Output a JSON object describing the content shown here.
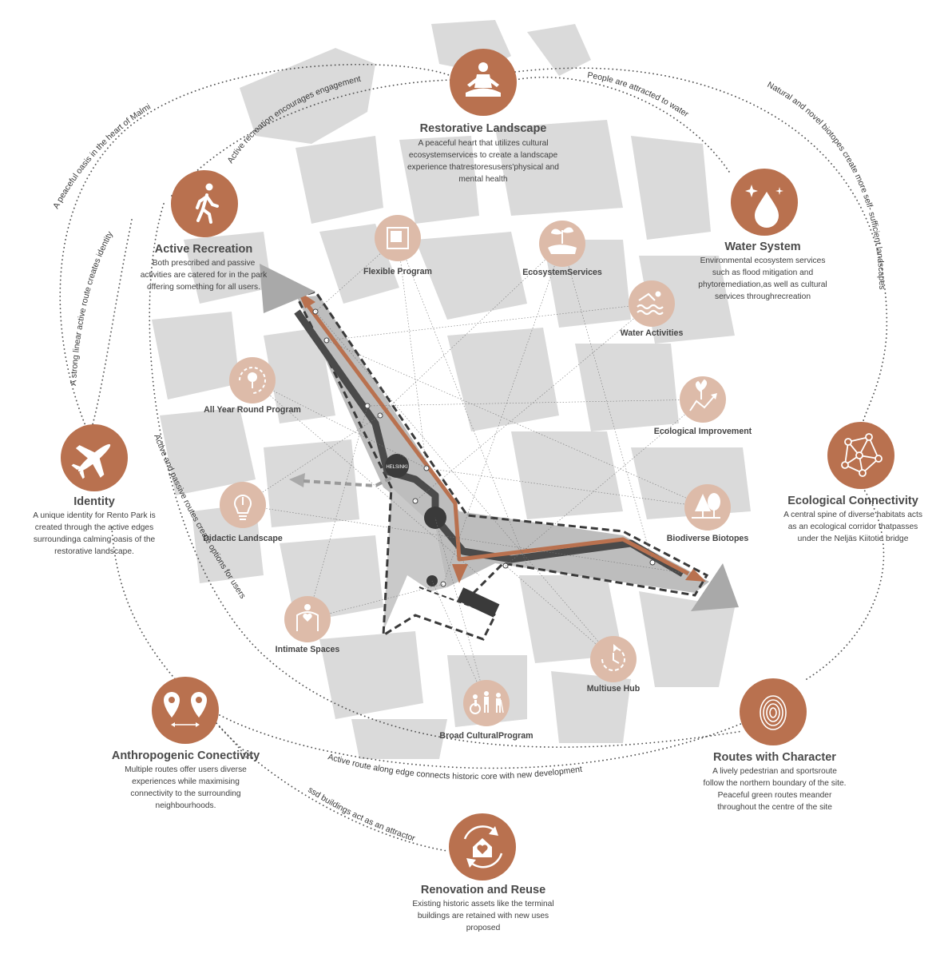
{
  "colors": {
    "accent": "#b9714f",
    "accent_light": "#ddbba9",
    "route_dark": "#4a4a4a",
    "block": "#d9d9d9",
    "street": "#ffffff"
  },
  "main_nodes": [
    {
      "id": "restorative",
      "icon": "meditation-icon",
      "title": "Restorative Landscape",
      "desc": "A peaceful heart that utilizes cultural ecosystemservices to create a landscape experience thatrestoresusers'physical and mental health"
    },
    {
      "id": "active",
      "icon": "walking-person-icon",
      "title": "Active Recreation",
      "desc": "Both prescribed and passive activities are catered for in the park offering something for all users."
    },
    {
      "id": "water",
      "icon": "water-drop-icon",
      "title": "Water System",
      "desc": "Environmental ecosystem services such as flood mitigation and phytoremediation,as well as cultural services throughrecreation"
    },
    {
      "id": "identity",
      "icon": "airplane-icon",
      "title": "Identity",
      "desc": "A unique identity for Rento Park is created through the active edges surroundinga calming oasis of the restorative landscape."
    },
    {
      "id": "ecological",
      "icon": "network-icon",
      "title": "Ecological Connectivity",
      "desc": "A central spine of diverse habitats acts as an ecological corridor thatpasses under the Neljäs Kiitotie bridge"
    },
    {
      "id": "anthropogenic",
      "icon": "location-pins-icon",
      "title": "Anthropogenic Conectivity",
      "desc": "Multiple routes offer users diverse experiences while maximising connectivity to the surrounding neighbourhoods."
    },
    {
      "id": "routes",
      "icon": "fingerprint-icon",
      "title": "Routes with Character",
      "desc": "A lively pedestrian and sportsroute follow the northern boundary of the site. Peaceful green routes meander throughout the centre of the site"
    },
    {
      "id": "renovation",
      "icon": "house-cycle-icon",
      "title": "Renovation and Reuse",
      "desc": "Existing historic assets like the terminal buildings are retained with new uses proposed"
    }
  ],
  "sub_nodes": [
    {
      "icon": "frame-icon",
      "label": "Flexible Program"
    },
    {
      "icon": "sprout-hand-icon",
      "label": "EcosystemServices"
    },
    {
      "icon": "swimmer-icon",
      "label": "Water Activities"
    },
    {
      "icon": "tree-cycle-icon",
      "label": "All Year Round Program"
    },
    {
      "icon": "growth-chart-icon",
      "label": "Ecological Improvement"
    },
    {
      "icon": "lightbulb-icon",
      "label": "Didactic Landscape"
    },
    {
      "icon": "trees-icon",
      "label": "Biodiverse Biotopes"
    },
    {
      "icon": "heart-person-icon",
      "label": "Intimate Spaces"
    },
    {
      "icon": "clock-cycle-icon",
      "label": "Multiuse Hub"
    },
    {
      "icon": "people-icon",
      "label": "Broad CulturalProgram"
    }
  ],
  "path_labels": [
    "A peaceful oasis in the heart of Malmi",
    "Active recreation encourages engagement",
    "People are attracted to water",
    "Natural and novel biotopes create more self- sufficient landscapes",
    "A strong linear active route creates identity",
    "Active and passive routes create options for users",
    "Active route along edge connects historic core with new development",
    "ssd buildings act as an attractor"
  ],
  "map_marker": "HELSINKI"
}
